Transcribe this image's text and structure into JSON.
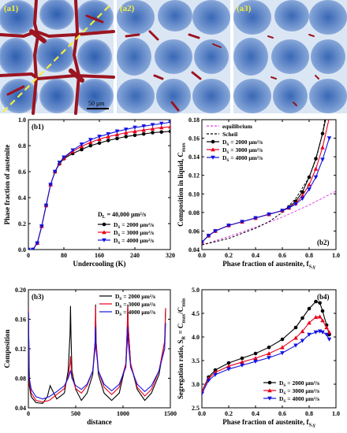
{
  "panels": {
    "a1": {
      "label": "(a1)",
      "scale_bar": "50 μm"
    },
    "a2": {
      "label": "(a2)"
    },
    "a3": {
      "label": "(a3)"
    }
  },
  "colors": {
    "ds2000": "#000000",
    "ds3000": "#e8001c",
    "ds4000": "#1414e0",
    "equilibrium": "#e040e0",
    "scheil": "#000000",
    "phase_red": "#9b1420",
    "dendrite_blue": "#2f5fb0",
    "liquid_light": "#dbe6f4",
    "dashed_line": "#f4ee3c"
  },
  "chart_data": [
    {
      "id": "b1",
      "type": "line",
      "panel_label": "(b1)",
      "xlabel": "Undercooling (K)",
      "ylabel": "Phase fraction of austenite",
      "xlim": [
        0,
        320
      ],
      "ylim": [
        0,
        1.0
      ],
      "xticks": [
        "0",
        "80",
        "160",
        "240",
        "320"
      ],
      "yticks": [
        "0.0",
        "0.2",
        "0.4",
        "0.6",
        "0.8",
        "1.0"
      ],
      "annotation": "D_L = 40,000 μm²/s",
      "legend_position": "lower-right",
      "series": [
        {
          "name": "D_S = 2000 μm²/s",
          "marker": "circle",
          "color_key": "ds2000",
          "x": [
            0,
            10,
            20,
            30,
            40,
            50,
            60,
            70,
            80,
            100,
            120,
            140,
            160,
            180,
            200,
            220,
            240,
            260,
            280,
            300,
            320
          ],
          "y": [
            0,
            0.0,
            0.05,
            0.18,
            0.34,
            0.5,
            0.6,
            0.66,
            0.7,
            0.74,
            0.77,
            0.8,
            0.82,
            0.84,
            0.855,
            0.87,
            0.88,
            0.89,
            0.9,
            0.905,
            0.91
          ]
        },
        {
          "name": "D_S = 3000 μm²/s",
          "marker": "triangle-up",
          "color_key": "ds3000",
          "x": [
            0,
            10,
            20,
            30,
            40,
            50,
            60,
            70,
            80,
            100,
            120,
            140,
            160,
            180,
            200,
            220,
            240,
            260,
            280,
            300,
            320
          ],
          "y": [
            0,
            0.0,
            0.05,
            0.18,
            0.34,
            0.5,
            0.6,
            0.665,
            0.705,
            0.755,
            0.795,
            0.825,
            0.85,
            0.87,
            0.885,
            0.9,
            0.91,
            0.92,
            0.93,
            0.94,
            0.945
          ]
        },
        {
          "name": "D_S = 4000 μm²/s",
          "marker": "triangle-down",
          "color_key": "ds4000",
          "x": [
            0,
            10,
            20,
            30,
            40,
            50,
            60,
            70,
            80,
            100,
            120,
            140,
            160,
            180,
            200,
            220,
            240,
            260,
            280,
            300,
            320
          ],
          "y": [
            0,
            0.0,
            0.05,
            0.18,
            0.34,
            0.5,
            0.6,
            0.67,
            0.71,
            0.765,
            0.81,
            0.845,
            0.87,
            0.89,
            0.91,
            0.925,
            0.94,
            0.95,
            0.96,
            0.97,
            0.98
          ]
        }
      ]
    },
    {
      "id": "b2",
      "type": "line",
      "panel_label": "(b2)",
      "xlabel": "Phase fraction of austenite, f_S,γ",
      "ylabel": "Composition in liquid, C_max",
      "xlim": [
        0,
        1.0
      ],
      "ylim": [
        0.04,
        0.18
      ],
      "xticks": [
        "0.0",
        "0.2",
        "0.4",
        "0.6",
        "0.8",
        "1.0"
      ],
      "yticks": [
        "0.04",
        "0.06",
        "0.08",
        "0.10",
        "0.12",
        "0.14",
        "0.16",
        "0.18"
      ],
      "legend_position": "upper-left",
      "series": [
        {
          "name": "equilibrium",
          "style": "dashed",
          "color_key": "equilibrium",
          "x": [
            0,
            0.2,
            0.4,
            0.6,
            0.8,
            1.0
          ],
          "y": [
            0.045,
            0.054,
            0.064,
            0.075,
            0.088,
            0.103
          ]
        },
        {
          "name": "Scheil",
          "style": "dashed",
          "color_key": "scheil",
          "x": [
            0,
            0.2,
            0.4,
            0.5,
            0.6,
            0.7,
            0.8,
            0.85,
            0.9,
            0.95
          ],
          "y": [
            0.045,
            0.052,
            0.063,
            0.07,
            0.08,
            0.095,
            0.118,
            0.137,
            0.165,
            0.21
          ]
        },
        {
          "name": "D_S = 2000 μm²/s",
          "marker": "circle",
          "color_key": "ds2000",
          "x": [
            0,
            0.05,
            0.1,
            0.2,
            0.3,
            0.4,
            0.5,
            0.6,
            0.65,
            0.7,
            0.75,
            0.8,
            0.85,
            0.9,
            0.93
          ],
          "y": [
            0.048,
            0.055,
            0.06,
            0.066,
            0.07,
            0.074,
            0.078,
            0.082,
            0.086,
            0.092,
            0.102,
            0.118,
            0.138,
            0.165,
            0.185
          ]
        },
        {
          "name": "D_S = 3000 μm²/s",
          "marker": "triangle-up",
          "color_key": "ds3000",
          "x": [
            0,
            0.05,
            0.1,
            0.2,
            0.3,
            0.4,
            0.5,
            0.6,
            0.65,
            0.7,
            0.75,
            0.8,
            0.85,
            0.9,
            0.95
          ],
          "y": [
            0.048,
            0.055,
            0.06,
            0.066,
            0.07,
            0.074,
            0.078,
            0.082,
            0.085,
            0.09,
            0.098,
            0.11,
            0.127,
            0.15,
            0.182
          ]
        },
        {
          "name": "D_S = 4000 μm²/s",
          "marker": "triangle-down",
          "color_key": "ds4000",
          "x": [
            0,
            0.05,
            0.1,
            0.2,
            0.3,
            0.4,
            0.5,
            0.6,
            0.65,
            0.7,
            0.75,
            0.8,
            0.85,
            0.9,
            0.95
          ],
          "y": [
            0.048,
            0.055,
            0.06,
            0.066,
            0.07,
            0.074,
            0.078,
            0.082,
            0.085,
            0.089,
            0.095,
            0.105,
            0.118,
            0.137,
            0.16
          ]
        }
      ]
    },
    {
      "id": "b3",
      "type": "line",
      "panel_label": "(b3)",
      "xlabel": "distance",
      "ylabel": "Composition",
      "xlim": [
        0,
        1500
      ],
      "ylim": [
        0.04,
        0.2
      ],
      "xticks": [
        "0",
        "500",
        "1000",
        "1500"
      ],
      "yticks": [
        "0.04",
        "0.08",
        "0.12",
        "0.16",
        "0.20"
      ],
      "legend_position": "upper-right",
      "series": [
        {
          "name": "D_S = 2000 μm²/s",
          "color_key": "ds2000",
          "x": [
            0,
            10,
            30,
            80,
            150,
            200,
            230,
            260,
            300,
            380,
            420,
            440,
            445,
            450,
            460,
            500,
            560,
            620,
            680,
            705,
            710,
            715,
            740,
            800,
            880,
            960,
            1030,
            1045,
            1050,
            1055,
            1080,
            1150,
            1230,
            1300,
            1380,
            1440,
            1450
          ],
          "y": [
            0.175,
            0.07,
            0.055,
            0.047,
            0.046,
            0.055,
            0.07,
            0.062,
            0.052,
            0.06,
            0.09,
            0.14,
            0.178,
            0.14,
            0.09,
            0.065,
            0.05,
            0.06,
            0.085,
            0.13,
            0.18,
            0.13,
            0.085,
            0.06,
            0.05,
            0.06,
            0.1,
            0.15,
            0.18,
            0.15,
            0.1,
            0.065,
            0.05,
            0.06,
            0.085,
            0.13,
            0.175
          ]
        },
        {
          "name": "D_S = 3000 μm²/s",
          "color_key": "ds3000",
          "x": [
            0,
            10,
            30,
            80,
            150,
            220,
            300,
            380,
            420,
            440,
            445,
            450,
            460,
            500,
            560,
            620,
            680,
            705,
            710,
            715,
            740,
            800,
            880,
            960,
            1030,
            1045,
            1050,
            1055,
            1080,
            1150,
            1230,
            1300,
            1380,
            1440,
            1450
          ],
          "y": [
            0.175,
            0.075,
            0.06,
            0.05,
            0.048,
            0.05,
            0.058,
            0.066,
            0.082,
            0.1,
            0.11,
            0.1,
            0.082,
            0.066,
            0.06,
            0.07,
            0.09,
            0.13,
            0.178,
            0.13,
            0.09,
            0.068,
            0.058,
            0.068,
            0.1,
            0.15,
            0.178,
            0.15,
            0.1,
            0.068,
            0.056,
            0.065,
            0.09,
            0.13,
            0.175
          ]
        },
        {
          "name": "D_S = 4000 μm²/s",
          "color_key": "ds4000",
          "x": [
            0,
            10,
            30,
            80,
            150,
            220,
            300,
            380,
            420,
            440,
            445,
            450,
            460,
            500,
            560,
            620,
            680,
            705,
            710,
            715,
            740,
            800,
            880,
            960,
            1030,
            1045,
            1050,
            1055,
            1080,
            1150,
            1230,
            1300,
            1380,
            1440,
            1450
          ],
          "y": [
            0.17,
            0.08,
            0.065,
            0.055,
            0.052,
            0.055,
            0.062,
            0.07,
            0.08,
            0.088,
            0.09,
            0.088,
            0.08,
            0.07,
            0.065,
            0.072,
            0.09,
            0.12,
            0.15,
            0.12,
            0.09,
            0.072,
            0.063,
            0.072,
            0.095,
            0.13,
            0.15,
            0.13,
            0.095,
            0.072,
            0.062,
            0.07,
            0.09,
            0.12,
            0.155
          ]
        }
      ]
    },
    {
      "id": "b4",
      "type": "line",
      "panel_label": "(b4)",
      "xlabel": "Phase fraction of austenite, f_S,γ",
      "ylabel": "Segregation ratio, S_R = C_max/C_min",
      "xlim": [
        0,
        1.0
      ],
      "ylim": [
        2.5,
        5.0
      ],
      "xticks": [
        "0.0",
        "0.2",
        "0.4",
        "0.6",
        "0.8",
        "1.0"
      ],
      "yticks": [
        "2.5",
        "3.0",
        "3.5",
        "4.0",
        "4.5",
        "5.0"
      ],
      "legend_position": "lower-right",
      "series": [
        {
          "name": "D_S = 2000 μm²/s",
          "marker": "circle",
          "color_key": "ds2000",
          "x": [
            0,
            0.05,
            0.1,
            0.2,
            0.3,
            0.4,
            0.5,
            0.6,
            0.7,
            0.75,
            0.8,
            0.85,
            0.88,
            0.9,
            0.93,
            0.95
          ],
          "y": [
            2.85,
            3.15,
            3.3,
            3.45,
            3.55,
            3.65,
            3.78,
            3.95,
            4.2,
            4.4,
            4.6,
            4.75,
            4.72,
            4.55,
            4.25,
            4.05
          ]
        },
        {
          "name": "D_S = 3000 μm²/s",
          "marker": "triangle-up",
          "color_key": "ds3000",
          "x": [
            0,
            0.05,
            0.1,
            0.2,
            0.3,
            0.4,
            0.5,
            0.6,
            0.7,
            0.75,
            0.8,
            0.85,
            0.88,
            0.9,
            0.93,
            0.95
          ],
          "y": [
            2.85,
            3.12,
            3.25,
            3.38,
            3.47,
            3.55,
            3.65,
            3.78,
            3.98,
            4.12,
            4.3,
            4.42,
            4.43,
            4.35,
            4.2,
            4.1
          ]
        },
        {
          "name": "D_S = 4000 μm²/s",
          "marker": "triangle-down",
          "color_key": "ds4000",
          "x": [
            0,
            0.05,
            0.1,
            0.2,
            0.3,
            0.4,
            0.5,
            0.6,
            0.7,
            0.75,
            0.8,
            0.85,
            0.88,
            0.9,
            0.93,
            0.95
          ],
          "y": [
            2.8,
            3.08,
            3.2,
            3.32,
            3.4,
            3.48,
            3.56,
            3.66,
            3.82,
            3.92,
            4.05,
            4.1,
            4.12,
            4.1,
            4.05,
            3.95
          ]
        }
      ]
    }
  ]
}
